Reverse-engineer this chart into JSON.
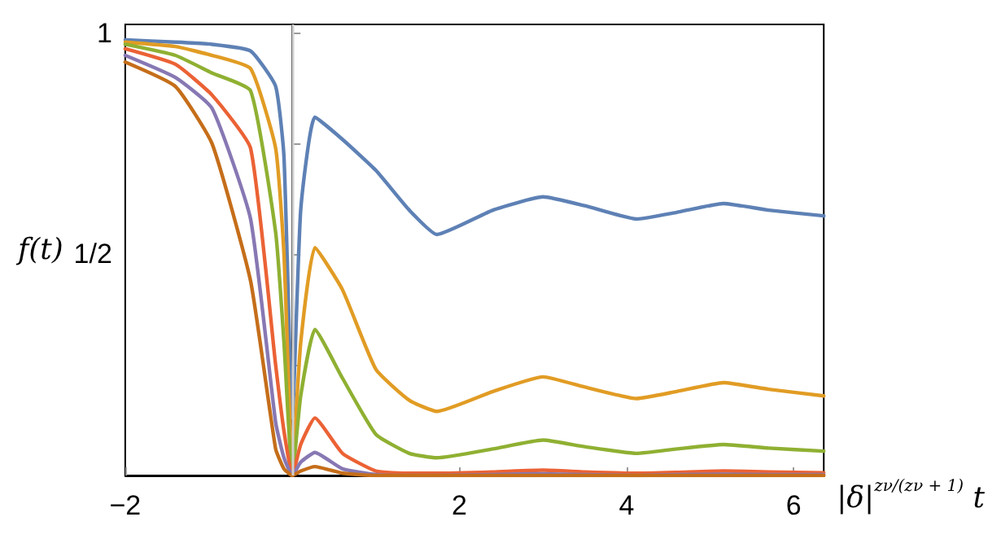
{
  "chart_data": {
    "type": "line",
    "xlabel": "|δ|$^{zν/(zν + 1)}$ t",
    "ylabel": "f(t)",
    "x": [
      -2,
      -1.4,
      -0.96,
      -0.5,
      -0.2,
      -0.1,
      0,
      0.1,
      0.27,
      0.6,
      1.0,
      1.4,
      1.73,
      2.4,
      3.0,
      3.5,
      4.12,
      4.6,
      5.16,
      5.7,
      6.36
    ],
    "series": [
      {
        "color": "#5e81b5",
        "values": [
          0.985,
          0.98,
          0.975,
          0.96,
          0.88,
          0.72,
          0.13,
          0.6,
          0.81,
          0.76,
          0.69,
          0.6,
          0.545,
          0.6,
          0.63,
          0.61,
          0.58,
          0.595,
          0.615,
          0.6,
          0.587
        ]
      },
      {
        "color": "#e19c24",
        "values": [
          0.98,
          0.97,
          0.95,
          0.92,
          0.74,
          0.5,
          0.02,
          0.3,
          0.515,
          0.42,
          0.24,
          0.17,
          0.145,
          0.19,
          0.223,
          0.2,
          0.174,
          0.19,
          0.21,
          0.195,
          0.18
        ]
      },
      {
        "color": "#8fb032",
        "values": [
          0.975,
          0.95,
          0.91,
          0.87,
          0.55,
          0.3,
          0,
          0.18,
          0.33,
          0.22,
          0.093,
          0.05,
          0.04,
          0.06,
          0.08,
          0.065,
          0.05,
          0.06,
          0.07,
          0.062,
          0.055
        ]
      },
      {
        "color": "#eb6235",
        "values": [
          0.965,
          0.93,
          0.86,
          0.74,
          0.25,
          0.1,
          0,
          0.07,
          0.13,
          0.05,
          0.01,
          0.005,
          0.005,
          0.008,
          0.012,
          0.008,
          0.005,
          0.007,
          0.01,
          0.008,
          0.006
        ]
      },
      {
        "color": "#8778b3",
        "values": [
          0.95,
          0.9,
          0.83,
          0.58,
          0.12,
          0.04,
          0,
          0.03,
          0.052,
          0.015,
          0.002,
          0,
          0,
          0.002,
          0.004,
          0.002,
          0,
          0.002,
          0.003,
          0.002,
          0.002
        ]
      },
      {
        "color": "#c56e1a",
        "values": [
          0.935,
          0.88,
          0.75,
          0.44,
          0.06,
          0.015,
          0,
          0.01,
          0.02,
          0.005,
          0,
          0,
          0,
          0,
          0,
          0,
          0,
          0,
          0,
          0,
          0
        ]
      }
    ],
    "xlim": [
      -2,
      6.36
    ],
    "xticks": [
      -2,
      {
        "value": 0,
        "label": null
      },
      2,
      4,
      6
    ],
    "ylim": [
      0,
      1.02
    ],
    "yticks": [
      {
        "value": 0.25,
        "label": null
      },
      {
        "value": 0.5,
        "label": "1/2"
      },
      {
        "value": 0.75,
        "label": null
      },
      1
    ],
    "ref_lines": [
      {
        "axis": "x",
        "value": 0,
        "color": "#d0d0d0"
      }
    ],
    "grid": false,
    "marker": "none",
    "line_style": "solid"
  }
}
